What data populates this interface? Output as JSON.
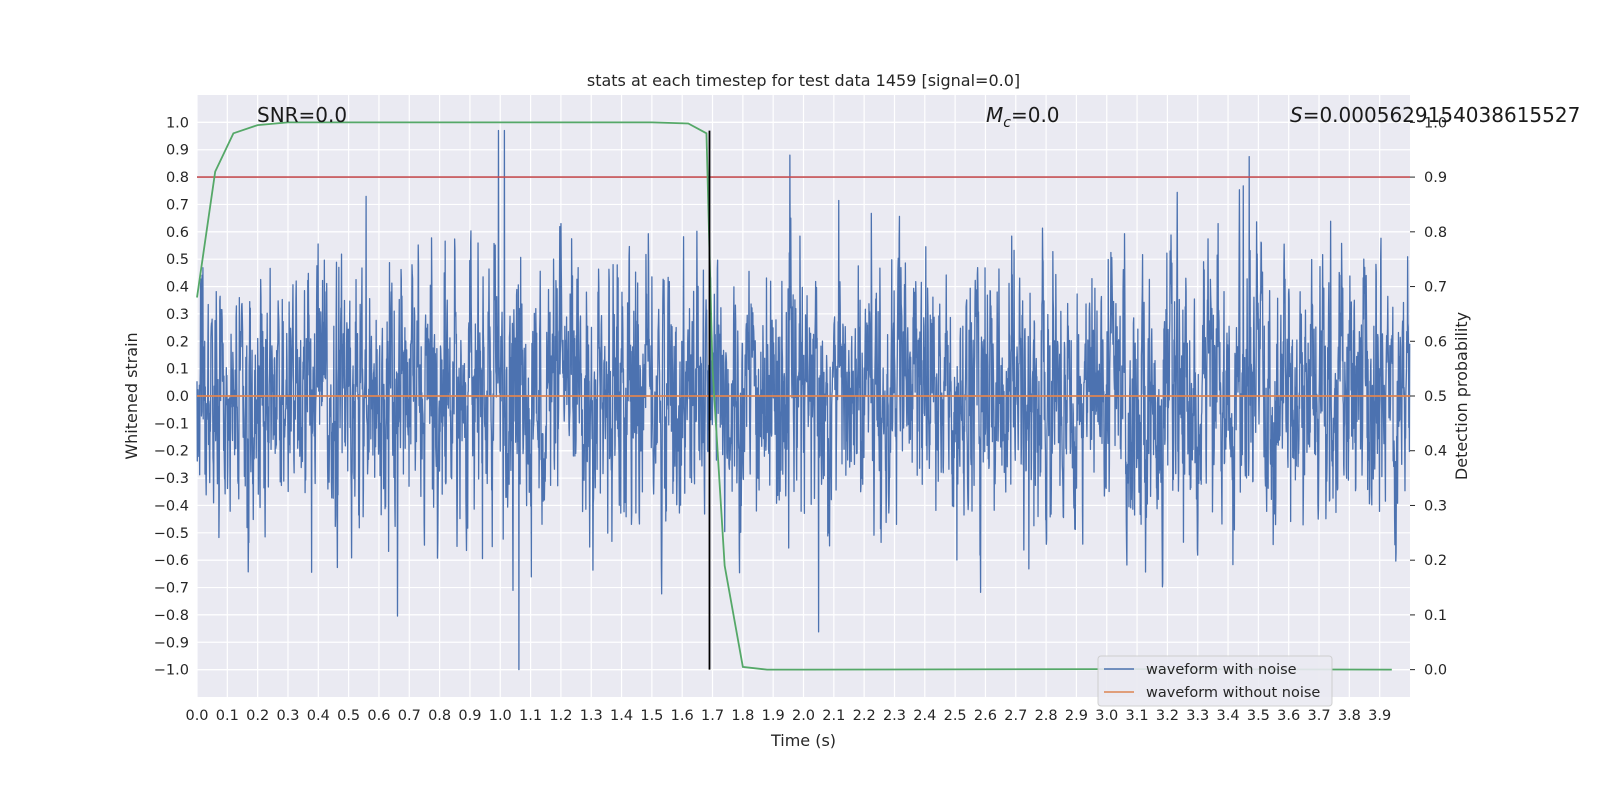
{
  "chart_data": {
    "type": "line",
    "title": "stats at each timestep for test data 1459 [signal=0.0]",
    "xlabel": "Time (s)",
    "ylabel_left": "Whitened strain",
    "ylabel_right": "Detection probability",
    "xlim": [
      0.0,
      4.0
    ],
    "ylim_left": [
      -1.1,
      1.1
    ],
    "ylim_right": [
      -0.05,
      1.05
    ],
    "x_ticks": [
      "0.0",
      "0.1",
      "0.2",
      "0.3",
      "0.4",
      "0.5",
      "0.6",
      "0.7",
      "0.8",
      "0.9",
      "1.0",
      "1.1",
      "1.2",
      "1.3",
      "1.4",
      "1.5",
      "1.6",
      "1.7",
      "1.8",
      "1.9",
      "2.0",
      "2.1",
      "2.2",
      "2.3",
      "2.4",
      "2.5",
      "2.6",
      "2.7",
      "2.8",
      "2.9",
      "3.0",
      "3.1",
      "3.2",
      "3.3",
      "3.4",
      "3.5",
      "3.6",
      "3.7",
      "3.8",
      "3.9"
    ],
    "y_ticks_left": [
      "−1.0",
      "−0.9",
      "−0.8",
      "−0.7",
      "−0.6",
      "−0.5",
      "−0.4",
      "−0.3",
      "−0.2",
      "−0.1",
      "0.0",
      "0.1",
      "0.2",
      "0.3",
      "0.4",
      "0.5",
      "0.6",
      "0.7",
      "0.8",
      "0.9",
      "1.0"
    ],
    "y_ticks_right": [
      "0.0",
      "0.1",
      "0.2",
      "0.3",
      "0.4",
      "0.5",
      "0.6",
      "0.7",
      "0.8",
      "0.9",
      "1.0"
    ],
    "grid": true,
    "legend_position": "lower-right",
    "annotations": {
      "snr": "SNR=0.0",
      "mc_symbol": "M",
      "mc_sub": "c",
      "mc_value": "=0.0",
      "s_symbol": "S",
      "s_value": "=0.0005629154038615527"
    },
    "series": [
      {
        "name": "waveform with noise",
        "axis": "left",
        "color": "#4c72b0",
        "style": "dense random noise, roughly ±0.35 typical, extremes near ±1.0"
      },
      {
        "name": "waveform without noise",
        "axis": "left",
        "color": "#dd8452",
        "y_constant": 0.0
      },
      {
        "axis": "right",
        "color": "#55a868",
        "x": [
          0.0,
          0.06,
          0.12,
          0.2,
          0.3,
          0.5,
          1.0,
          1.5,
          1.62,
          1.68,
          1.7,
          1.74,
          1.8,
          1.88,
          2.0,
          3.0,
          3.94
        ],
        "y": [
          0.68,
          0.91,
          0.98,
          0.995,
          1.0,
          1.0,
          1.0,
          1.0,
          0.998,
          0.98,
          0.55,
          0.19,
          0.005,
          0.0,
          0.0,
          0.001,
          0.0
        ]
      },
      {
        "axis": "right",
        "color": "#c44e52",
        "y_constant": 0.9
      },
      {
        "axis": "left",
        "color": "#000000",
        "type": "vline",
        "x_constant": 1.69,
        "y_range": [
          -1.0,
          0.97
        ]
      }
    ]
  }
}
